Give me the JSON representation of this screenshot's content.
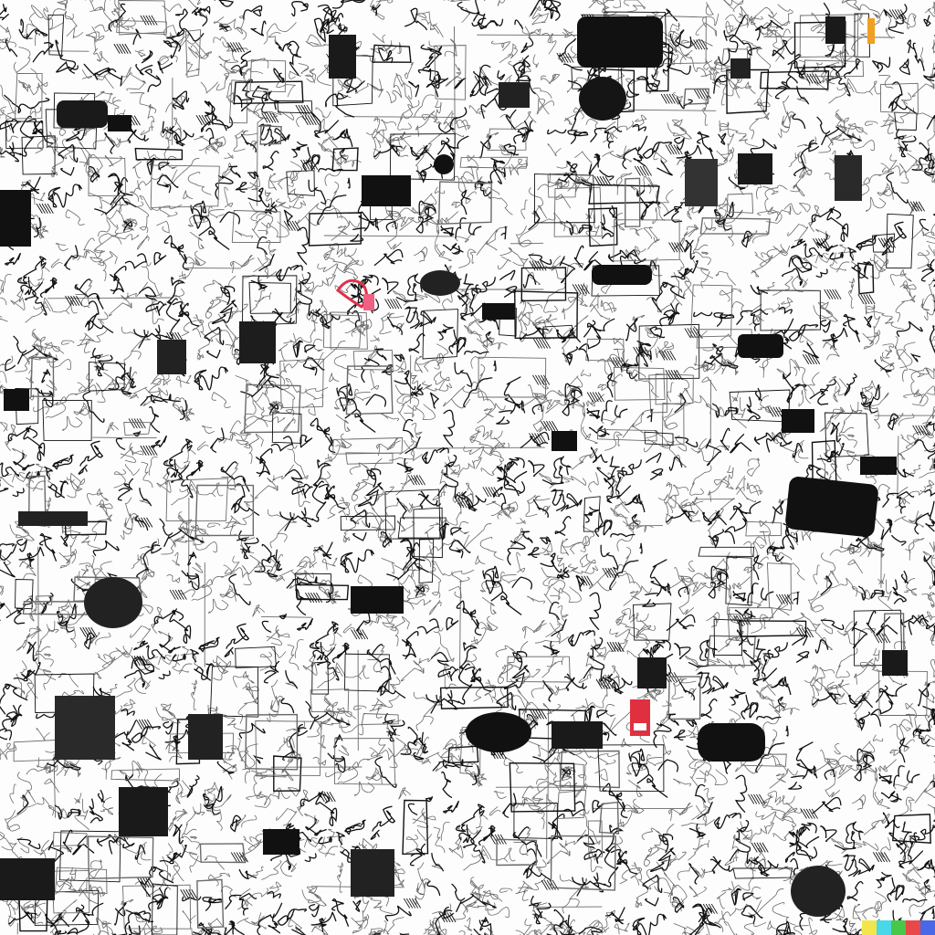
{
  "image": {
    "description_type": "dense-doodle-sketch",
    "palette": {
      "ink": "#111111",
      "ink_light": "#6a6a6a",
      "paper": "#fdfdfd",
      "accent_red": "#e0304a",
      "accent_pink": "#f06080",
      "accent_orange": "#f0a020"
    }
  },
  "signature_bar": {
    "colors": [
      "#f2e64a",
      "#48d8e8",
      "#48c848",
      "#e84848",
      "#4868e8"
    ]
  }
}
